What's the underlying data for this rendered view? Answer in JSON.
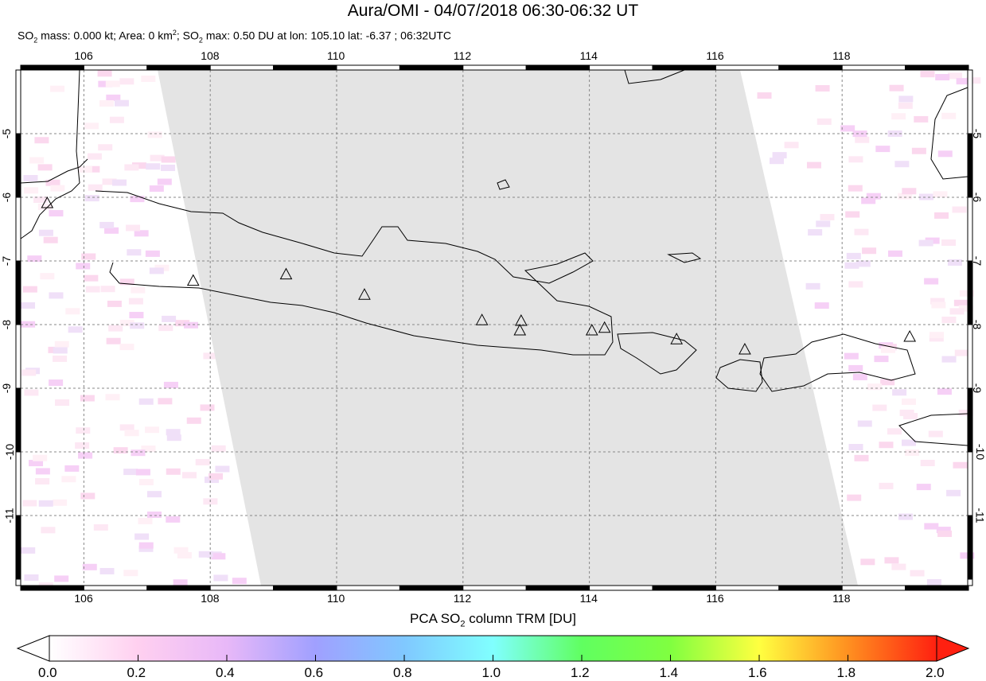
{
  "title": "Aura/OMI - 04/07/2018 06:30-06:32 UT",
  "subtitle": {
    "p1": "SO",
    "p2": " mass: 0.000 kt; Area: 0 km",
    "p3": "; SO",
    "p4": " max: 0.50 DU at lon: 105.10 lat: -6.37 ; 06:32UTC"
  },
  "map": {
    "lon_range": [
      105,
      120
    ],
    "lat_range": [
      -12.1,
      -4
    ],
    "lon_ticks": [
      "106",
      "108",
      "110",
      "112",
      "114",
      "116",
      "118"
    ],
    "lat_ticks": [
      "-5",
      "-6",
      "-7",
      "-8",
      "-9",
      "-10",
      "-11"
    ],
    "swath_color": "#e4e4e4",
    "coast_color": "#000000"
  },
  "colorbar": {
    "title_a": "PCA SO",
    "title_b": " column TRM [DU]",
    "range": [
      0,
      2
    ],
    "labels": [
      "0.0",
      "0.2",
      "0.4",
      "0.6",
      "0.8",
      "1.0",
      "1.2",
      "1.4",
      "1.6",
      "1.8",
      "2.0"
    ],
    "colors": [
      "#ffffff",
      "#ffd0f0",
      "#e8b8f8",
      "#a0a0ff",
      "#80c8ff",
      "#80ffff",
      "#60ff60",
      "#80ff40",
      "#ffff40",
      "#ff9020",
      "#ff2010"
    ]
  }
}
